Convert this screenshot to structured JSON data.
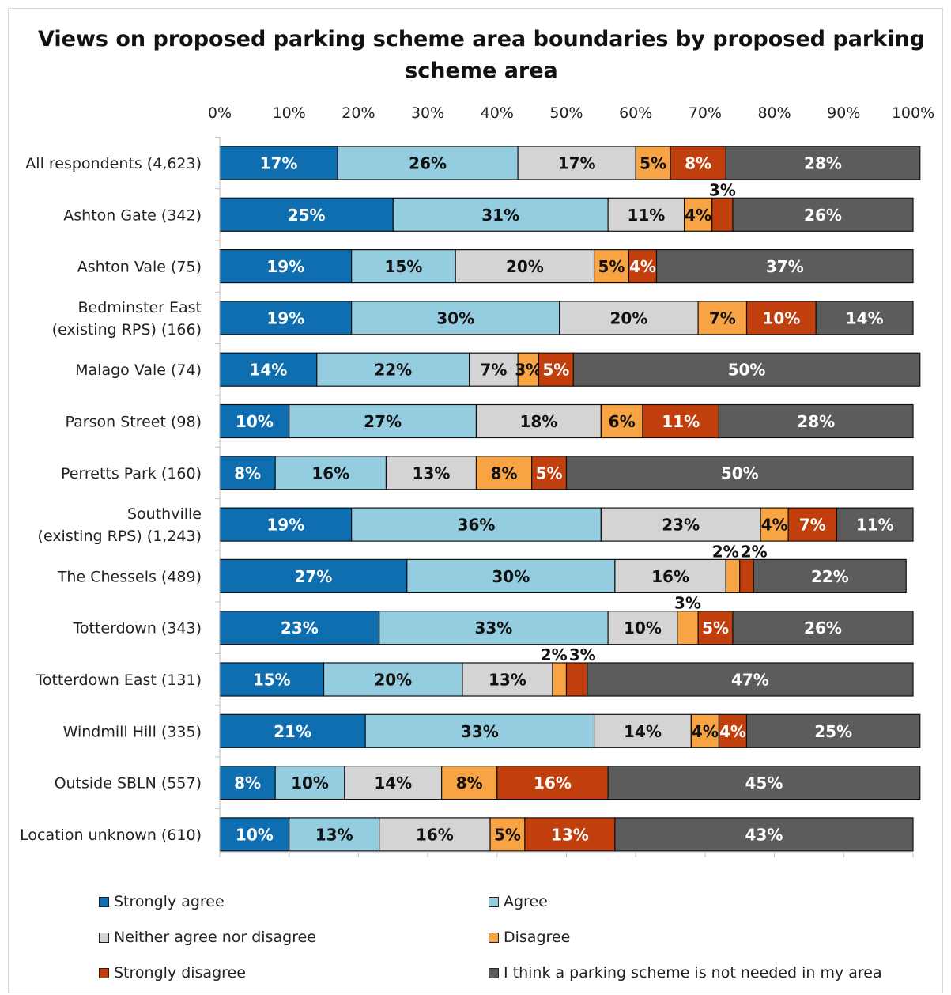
{
  "chart_data": {
    "type": "bar",
    "orientation": "horizontal",
    "stacked": "percent",
    "title": "Views on proposed parking scheme area boundaries by proposed parking scheme area",
    "xlim": [
      0,
      100
    ],
    "x_ticks": [
      "0%",
      "10%",
      "20%",
      "30%",
      "40%",
      "50%",
      "60%",
      "70%",
      "80%",
      "90%",
      "100%"
    ],
    "grid": false,
    "legend_position": "bottom",
    "categories": [
      [
        "All respondents (4,623)"
      ],
      [
        "Ashton Gate (342)"
      ],
      [
        "Ashton Vale (75)"
      ],
      [
        "Bedminster East",
        "(existing RPS) (166)"
      ],
      [
        "Malago Vale (74)"
      ],
      [
        "Parson Street (98)"
      ],
      [
        "Perretts Park (160)"
      ],
      [
        "Southville",
        "(existing RPS) (1,243)"
      ],
      [
        "The Chessels (489)"
      ],
      [
        "Totterdown (343)"
      ],
      [
        "Totterdown East (131)"
      ],
      [
        "Windmill Hill (335)"
      ],
      [
        "Outside SBLN (557)"
      ],
      [
        "Location unknown (610)"
      ]
    ],
    "series": [
      {
        "name": "Strongly agree",
        "color": "#0e6eb0",
        "label_color": "#ffffff",
        "values": [
          17,
          25,
          19,
          19,
          14,
          10,
          8,
          19,
          27,
          23,
          15,
          21,
          8,
          10
        ]
      },
      {
        "name": "Agree",
        "color": "#94cce0",
        "label_color": "#111111",
        "values": [
          26,
          31,
          15,
          30,
          22,
          27,
          16,
          36,
          30,
          33,
          20,
          33,
          10,
          13
        ]
      },
      {
        "name": "Neither agree nor disagree",
        "color": "#d4d4d4",
        "label_color": "#111111",
        "values": [
          17,
          11,
          20,
          20,
          7,
          18,
          13,
          23,
          16,
          10,
          13,
          14,
          14,
          16
        ]
      },
      {
        "name": "Disagree",
        "color": "#f9a444",
        "label_color": "#111111",
        "values": [
          5,
          4,
          5,
          7,
          3,
          6,
          8,
          4,
          2,
          3,
          2,
          4,
          8,
          5
        ]
      },
      {
        "name": "Strongly disagree",
        "color": "#c13e0d",
        "label_color": "#ffffff",
        "values": [
          8,
          3,
          4,
          10,
          5,
          11,
          5,
          7,
          2,
          5,
          3,
          4,
          16,
          13
        ]
      },
      {
        "name": "I think a parking scheme is not needed in my area",
        "color": "#5c5c5c",
        "label_color": "#ffffff",
        "values": [
          28,
          26,
          37,
          14,
          50,
          28,
          50,
          11,
          22,
          26,
          47,
          25,
          45,
          43
        ]
      }
    ],
    "outside_labels": [
      {
        "row": 1,
        "series": [
          4
        ]
      },
      {
        "row": 8,
        "series": [
          3,
          4
        ]
      },
      {
        "row": 9,
        "series": [
          3
        ]
      },
      {
        "row": 10,
        "series": [
          3,
          4
        ]
      }
    ],
    "value_suffix": "%"
  }
}
